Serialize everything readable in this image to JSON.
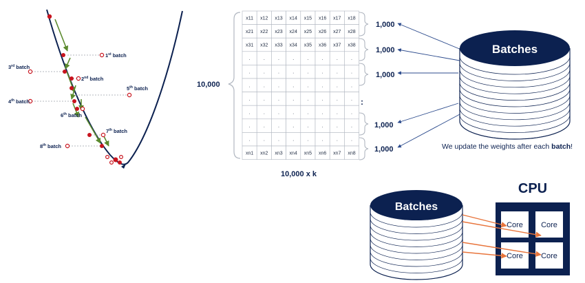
{
  "descent": {
    "batch_labels": [
      {
        "id": "b1",
        "ord": "1",
        "sup": "st",
        "word": " batch"
      },
      {
        "id": "b2",
        "ord": "2",
        "sup": "nd",
        "word": " batch"
      },
      {
        "id": "b3",
        "ord": "3",
        "sup": "rd",
        "word": " batch"
      },
      {
        "id": "b4",
        "ord": "4",
        "sup": "th",
        "word": " batch"
      },
      {
        "id": "b5",
        "ord": "5",
        "sup": "th",
        "word": " batch"
      },
      {
        "id": "b6",
        "ord": "6",
        "sup": "th",
        "word": " batch"
      },
      {
        "id": "b7",
        "ord": "7",
        "sup": "th",
        "word": " batch"
      },
      {
        "id": "b8",
        "ord": "8",
        "sup": "th",
        "word": " batch"
      }
    ],
    "colors": {
      "curve": "#0c2150",
      "point": "#c8141e",
      "arrow": "#5b8a2e",
      "leader": "#9aa0a8"
    }
  },
  "matrix": {
    "rows": [
      [
        "x11",
        "x12",
        "x13",
        "x14",
        "x15",
        "x16",
        "x17",
        "x18"
      ],
      [
        "x21",
        "x22",
        "x23",
        "x24",
        "x25",
        "x26",
        "x27",
        "x28"
      ],
      [
        "x31",
        "x32",
        "x33",
        "x34",
        "x35",
        "x36",
        "x37",
        "x38"
      ],
      [
        ".",
        ".",
        ".",
        ".",
        ".",
        ".",
        ".",
        "."
      ],
      [
        ".",
        ".",
        ".",
        ".",
        ".",
        ".",
        ".",
        "."
      ],
      [
        ".",
        ".",
        ".",
        ".",
        ".",
        ".",
        ".",
        "."
      ],
      [
        ".",
        ".",
        ".",
        ".",
        ".",
        ".",
        ".",
        "."
      ],
      [
        ".",
        ".",
        ".",
        ".",
        ".",
        ".",
        ".",
        "."
      ],
      [
        ".",
        ".",
        ".",
        ".",
        ".",
        ".",
        ".",
        "."
      ],
      [
        ".",
        ".",
        ".",
        ".",
        ".",
        ".",
        ".",
        "."
      ],
      [
        "xn1",
        "xn2",
        "xn3",
        "xn4",
        "xn5",
        "xn6",
        "xn7",
        "xn8"
      ]
    ],
    "row_count_label": "10,000",
    "dims_label": "10,000 x k",
    "batch_size_labels": [
      "1,000",
      "1,000",
      "1,000",
      "1,000",
      "1,000"
    ],
    "vertical_dots": ":"
  },
  "batches_top": {
    "label": "Batches",
    "caption_prefix": "We update the weights after each ",
    "caption_bold": "batch",
    "caption_suffix": "!"
  },
  "batches_bottom": {
    "label": "Batches"
  },
  "cpu": {
    "title": "CPU",
    "cores": [
      "Core",
      "Core",
      "Core",
      "Core"
    ]
  },
  "colors": {
    "navy": "#0c2150",
    "orange": "#e8743b",
    "grid": "#b0b6c0"
  }
}
